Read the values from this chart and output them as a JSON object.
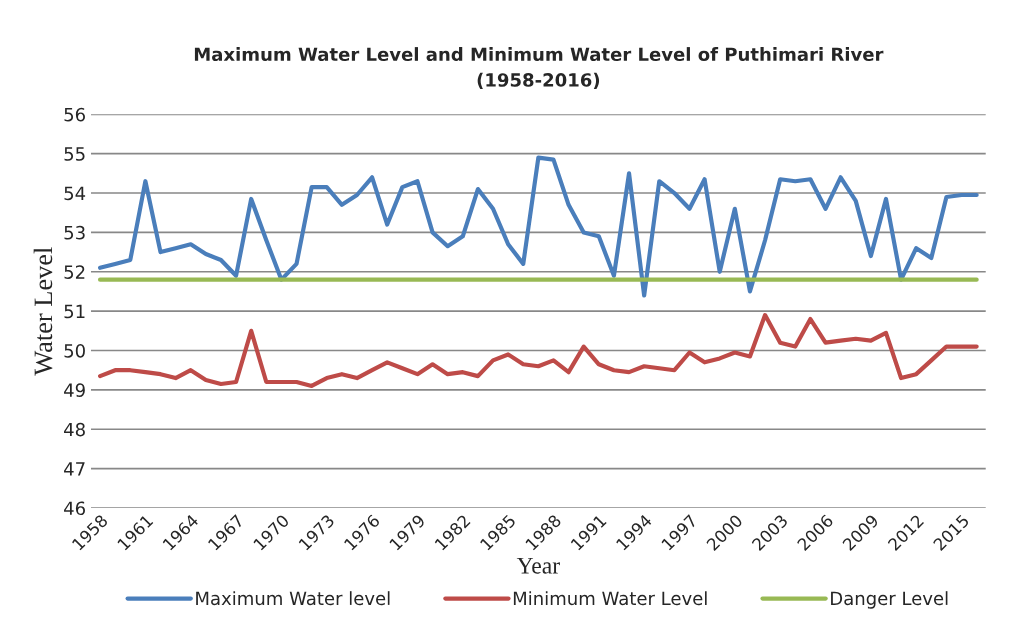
{
  "chart_data": {
    "type": "line",
    "title": "Maximum Water Level and Minimum Water Level of Puthimari River\n(1958-2016)",
    "xlabel": "Year",
    "ylabel": "Water Level",
    "categories": [
      "1958",
      null,
      null,
      "1961",
      null,
      null,
      "1964",
      null,
      null,
      "1967",
      null,
      null,
      "1970",
      null,
      null,
      "1973",
      null,
      null,
      "1976",
      null,
      null,
      "1979",
      null,
      null,
      "1982",
      null,
      null,
      "1985",
      null,
      null,
      "1988",
      null,
      null,
      "1991",
      null,
      null,
      "1994",
      null,
      null,
      "1997",
      null,
      null,
      "2000",
      null,
      null,
      "2003",
      null,
      null,
      "2006",
      null,
      null,
      "2009",
      null,
      null,
      "2012",
      null,
      null,
      "2015",
      null
    ],
    "series": [
      {
        "name": "Maximum Water level",
        "color": "#4a7ebb",
        "values": [
          52.1,
          52.2,
          52.3,
          54.3,
          52.5,
          52.6,
          52.7,
          52.45,
          52.3,
          51.9,
          53.85,
          52.8,
          51.8,
          52.2,
          54.15,
          54.15,
          53.7,
          53.95,
          54.4,
          53.2,
          54.15,
          54.3,
          53.0,
          52.65,
          52.9,
          54.1,
          53.6,
          52.7,
          52.2,
          54.9,
          54.85,
          53.7,
          53.0,
          52.9,
          51.9,
          54.5,
          51.4,
          54.3,
          54.0,
          53.6,
          54.35,
          52.0,
          53.6,
          51.5,
          52.8,
          54.35,
          54.3,
          54.35,
          53.6,
          54.4,
          53.8,
          52.4,
          53.85,
          51.8,
          52.6,
          52.35,
          53.9,
          53.95,
          53.95
        ]
      },
      {
        "name": "Minimum Water Level",
        "color": "#be4b48",
        "values": [
          49.35,
          49.5,
          49.5,
          49.45,
          49.4,
          49.3,
          49.5,
          49.25,
          49.15,
          49.2,
          50.5,
          49.2,
          49.2,
          49.2,
          49.1,
          49.3,
          49.4,
          49.3,
          49.5,
          49.7,
          49.55,
          49.4,
          49.65,
          49.4,
          49.45,
          49.35,
          49.75,
          49.9,
          49.65,
          49.6,
          49.75,
          49.45,
          50.1,
          49.65,
          49.5,
          49.45,
          49.6,
          49.55,
          49.5,
          49.95,
          49.7,
          49.8,
          49.95,
          49.85,
          50.9,
          50.2,
          50.1,
          50.8,
          50.2,
          50.25,
          50.3,
          50.25,
          50.45,
          49.3,
          49.4,
          49.75,
          50.1,
          50.1,
          50.1
        ]
      },
      {
        "name": "Danger Level",
        "color": "#98b954",
        "values": [
          51.8,
          51.8,
          51.8,
          51.8,
          51.8,
          51.8,
          51.8,
          51.8,
          51.8,
          51.8,
          51.8,
          51.8,
          51.8,
          51.8,
          51.8,
          51.8,
          51.8,
          51.8,
          51.8,
          51.8,
          51.8,
          51.8,
          51.8,
          51.8,
          51.8,
          51.8,
          51.8,
          51.8,
          51.8,
          51.8,
          51.8,
          51.8,
          51.8,
          51.8,
          51.8,
          51.8,
          51.8,
          51.8,
          51.8,
          51.8,
          51.8,
          51.8,
          51.8,
          51.8,
          51.8,
          51.8,
          51.8,
          51.8,
          51.8,
          51.8,
          51.8,
          51.8,
          51.8,
          51.8,
          51.8,
          51.8,
          51.8,
          51.8,
          51.8
        ]
      }
    ],
    "ylim": [
      46,
      56
    ],
    "yticks": [
      46,
      47,
      48,
      49,
      50,
      51,
      52,
      53,
      54,
      55,
      56
    ],
    "grid": "y",
    "legend": "bottom",
    "marker": "none",
    "line_style": "solid"
  }
}
